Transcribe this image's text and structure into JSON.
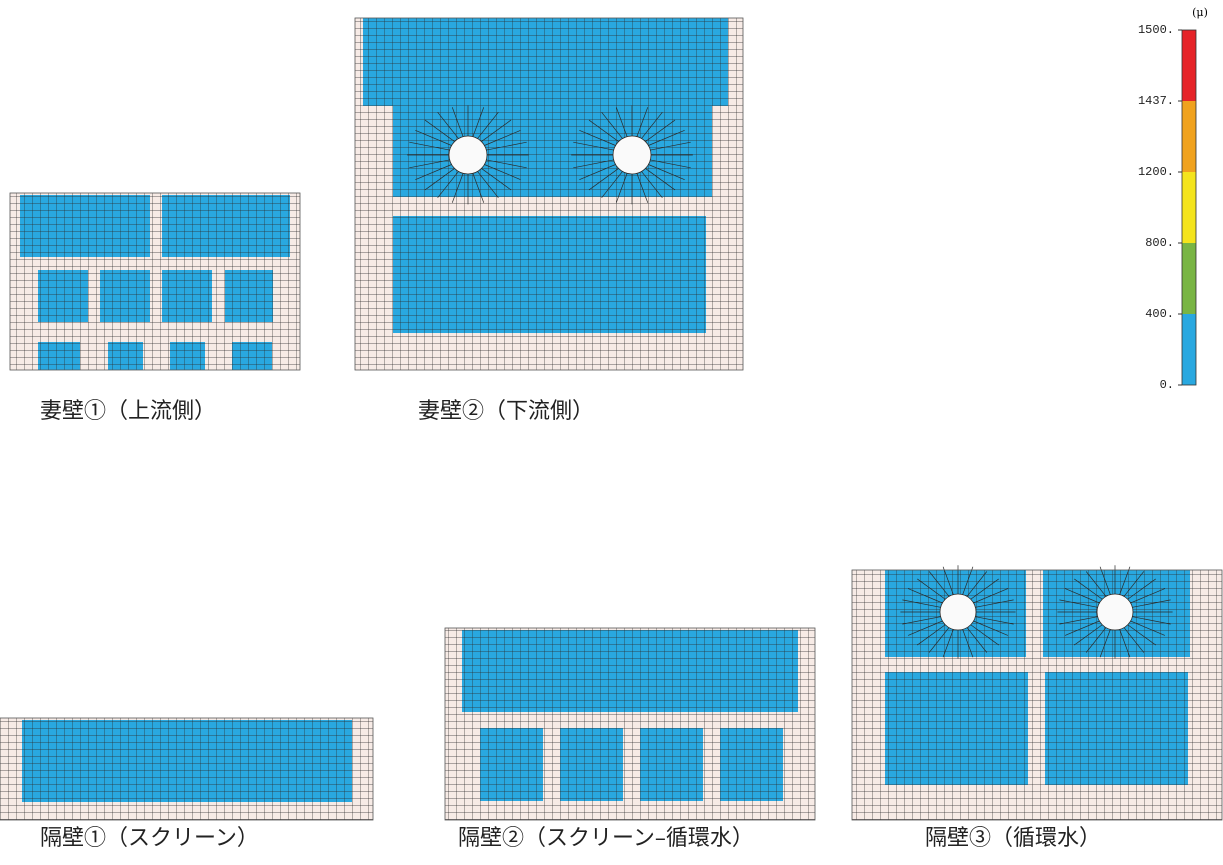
{
  "legend": {
    "unit": "(μ)",
    "ticks": [
      {
        "value": 1500,
        "label": "1500."
      },
      {
        "value": 1437,
        "label": "1437."
      },
      {
        "value": 1200,
        "label": "1200."
      },
      {
        "value": 800,
        "label": "800."
      },
      {
        "value": 400,
        "label": "400."
      },
      {
        "value": 0,
        "label": "0."
      }
    ],
    "colors": [
      "#e52328",
      "#f0a21e",
      "#f4e41c",
      "#79b544",
      "#29a8e0"
    ]
  },
  "panels": [
    {
      "caption": "妻壁①（上流側）"
    },
    {
      "caption": "妻壁②（下流側）"
    },
    {
      "caption": "隔壁①（スクリーン）"
    },
    {
      "caption": "隔壁②（スクリーン–循環水）"
    },
    {
      "caption": "隔壁③（循環水）"
    }
  ]
}
